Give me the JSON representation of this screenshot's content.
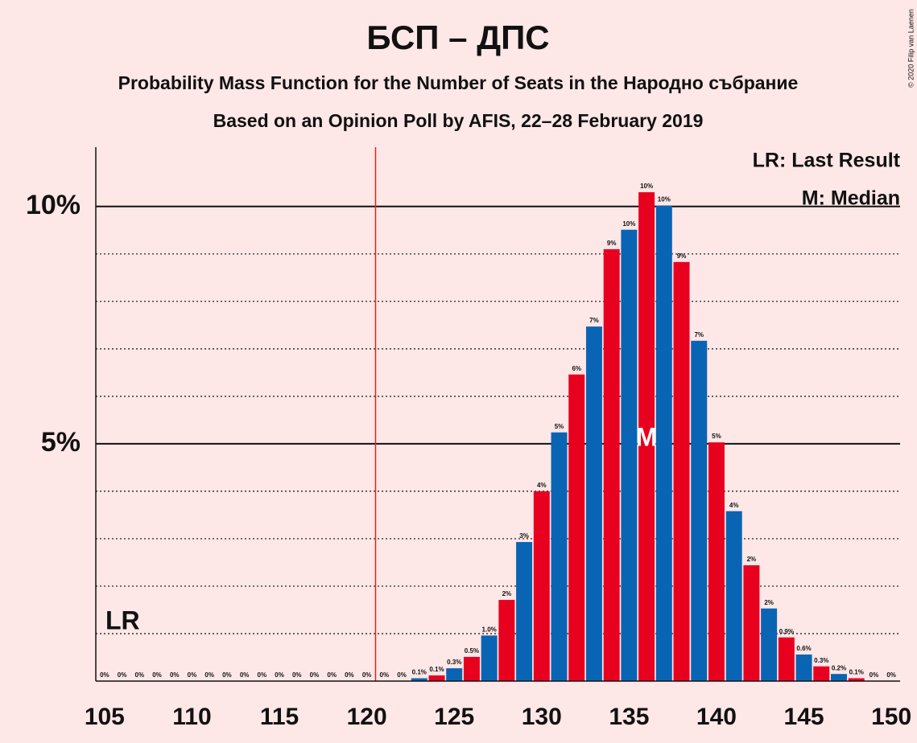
{
  "chart_data": {
    "type": "bar",
    "title": "БСП – ДПС",
    "subtitle": "Probability Mass Function for the Number of Seats in the Народно събрание",
    "subtitle2": "Based on an Opinion Poll by AFIS, 22–28 February 2019",
    "credit": "© 2020 Filip van Laenen",
    "legend_lr": "LR: Last Result",
    "legend_median": "M: Median",
    "lr_label": "LR",
    "median_label": "M",
    "last_result_line": 120.5,
    "median": 136,
    "x": [
      105,
      106,
      107,
      108,
      109,
      110,
      111,
      112,
      113,
      114,
      115,
      116,
      117,
      118,
      119,
      120,
      121,
      122,
      123,
      124,
      125,
      126,
      127,
      128,
      129,
      130,
      131,
      132,
      133,
      134,
      135,
      136,
      137,
      138,
      139,
      140,
      141,
      142,
      143,
      144,
      145,
      146,
      147,
      148,
      149,
      150
    ],
    "values": [
      0,
      0,
      0,
      0,
      0,
      0,
      0,
      0,
      0,
      0,
      0,
      0,
      0,
      0,
      0,
      0,
      0,
      0,
      0.06,
      0.12,
      0.27,
      0.51,
      0.96,
      1.71,
      2.93,
      4.0,
      5.24,
      6.46,
      7.47,
      9.1,
      9.51,
      10.3,
      10.02,
      8.83,
      7.17,
      5.03,
      3.58,
      2.44,
      1.53,
      0.92,
      0.56,
      0.31,
      0.15,
      0.06,
      0,
      0
    ],
    "value_labels": [
      "0%",
      "0%",
      "0%",
      "0%",
      "0%",
      "0%",
      "0%",
      "0%",
      "0%",
      "0%",
      "0%",
      "0%",
      "0%",
      "0%",
      "0%",
      "0%",
      "0%",
      "0%",
      "0.1%",
      "0.1%",
      "0.3%",
      "0.5%",
      "1.0%",
      "2%",
      "3%",
      "4%",
      "5%",
      "6%",
      "7%",
      "9%",
      "10%",
      "10%",
      "10%",
      "9%",
      "7%",
      "5%",
      "4%",
      "2%",
      "2%",
      "0.9%",
      "0.6%",
      "0.3%",
      "0.2%",
      "0.1%",
      "0%",
      "0%"
    ],
    "colors": [
      "#0a64b4",
      "#e8001f"
    ],
    "xlim": [
      104.5,
      150.5
    ],
    "xticks": [
      105,
      110,
      115,
      120,
      125,
      130,
      135,
      140,
      145,
      150
    ],
    "ylim": [
      0,
      11.25
    ],
    "yticks": [
      {
        "value": 5,
        "label": "5%"
      },
      {
        "value": 10,
        "label": "10%"
      }
    ],
    "minor_yticks": [
      1,
      2,
      3,
      4,
      6,
      7,
      8,
      9
    ],
    "grid": true
  }
}
